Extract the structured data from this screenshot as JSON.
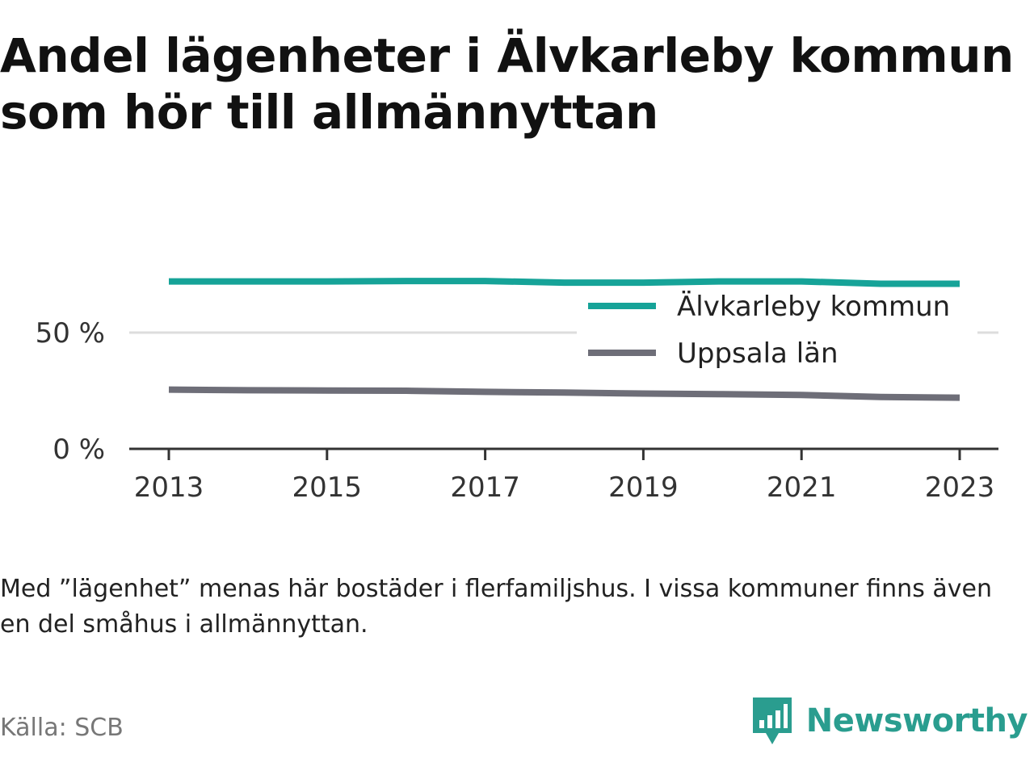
{
  "title": "Andel lägenheter i Älvkarleby kommun som hör till allmännyttan",
  "note": "Med ”lägenhet” menas här bostäder i flerfamiljshus. I vissa kommuner finns även en del småhus i allmännyttan.",
  "source": "Källa: SCB",
  "brand": {
    "name": "Newsworthy",
    "icon": "newsworthy-logo-icon"
  },
  "colors": {
    "alvkarleby": "#16a398",
    "uppsala": "#6e6e78",
    "grid": "#dddddd",
    "axis": "#333333"
  },
  "chart_data": {
    "type": "line",
    "x": [
      2013,
      2014,
      2015,
      2016,
      2017,
      2018,
      2019,
      2020,
      2021,
      2022,
      2023
    ],
    "x_ticks": [
      "2013",
      "2015",
      "2017",
      "2019",
      "2021",
      "2023"
    ],
    "y_ticks": [
      {
        "value": 0,
        "label": "0 %"
      },
      {
        "value": 50,
        "label": "50 %"
      }
    ],
    "ylim": [
      0,
      72
    ],
    "grid": true,
    "legend_position": "top-right",
    "series": [
      {
        "name": "Älvkarleby kommun",
        "values": [
          72,
          72,
          72,
          72.2,
          72.2,
          71.5,
          71.5,
          72,
          72,
          71,
          71
        ]
      },
      {
        "name": "Uppsala län",
        "values": [
          25.5,
          25.2,
          25.1,
          25,
          24.5,
          24.2,
          23.8,
          23.5,
          23.2,
          22.3,
          22
        ]
      }
    ]
  }
}
